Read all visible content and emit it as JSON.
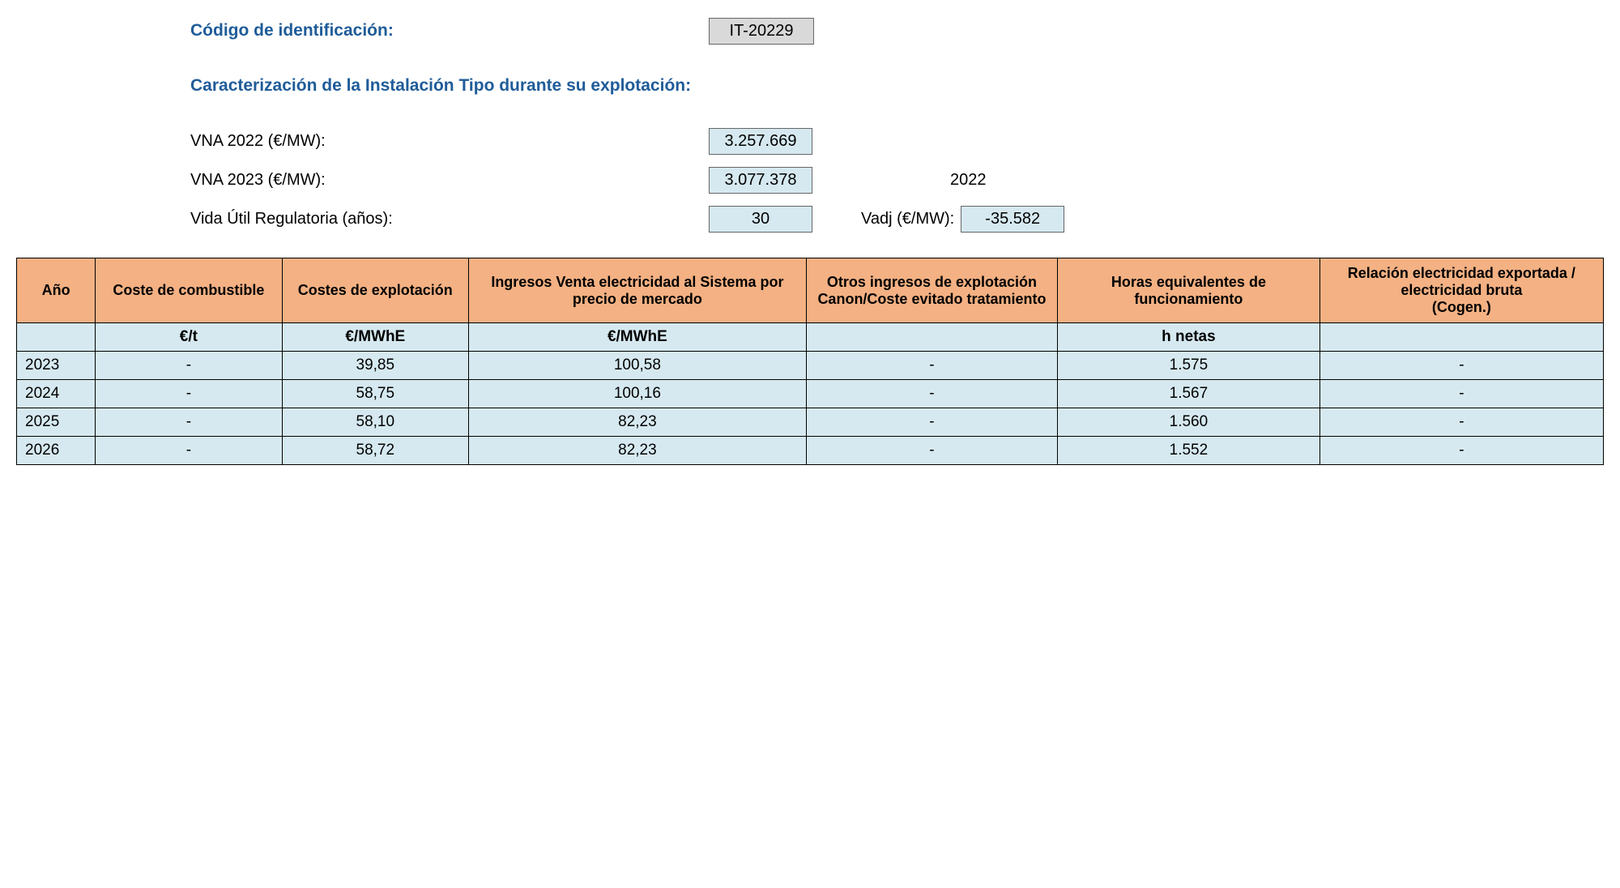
{
  "header": {
    "code_label": "Código de identificación:",
    "code_value": "IT-20229",
    "section_title": "Caracterización de la Instalación Tipo durante su explotación:",
    "vna2022_label": "VNA 2022 (€/MW):",
    "vna2022_value": "3.257.669",
    "vna2023_label": "VNA 2023 (€/MW):",
    "vna2023_value": "3.077.378",
    "year_ref": "2022",
    "vida_label": "Vida Útil Regulatoria (años):",
    "vida_value": "30",
    "vadj_label": "Vadj (€/MW):",
    "vadj_value": "-35.582"
  },
  "table": {
    "columns": [
      "Año",
      "Coste de combustible",
      "Costes de explotación",
      "Ingresos Venta electricidad al Sistema por precio de mercado",
      "Otros ingresos de explotación Canon/Coste evitado tratamiento",
      "Horas equivalentes de funcionamiento",
      "Relación electricidad exportada / electricidad bruta\n(Cogen.)"
    ],
    "units": [
      "",
      "€/t",
      "€/MWhE",
      "€/MWhE",
      "",
      "h netas",
      ""
    ],
    "rows": [
      [
        "2023",
        "-",
        "39,85",
        "100,58",
        "-",
        "1.575",
        "-"
      ],
      [
        "2024",
        "-",
        "58,75",
        "100,16",
        "-",
        "1.567",
        "-"
      ],
      [
        "2025",
        "-",
        "58,10",
        "82,23",
        "-",
        "1.560",
        "-"
      ],
      [
        "2026",
        "-",
        "58,72",
        "82,23",
        "-",
        "1.552",
        "-"
      ]
    ],
    "col_widths": [
      "60px",
      "160px",
      "160px",
      "300px",
      "220px",
      "230px",
      "250px"
    ],
    "header_bg": "#f4b183",
    "cell_bg": "#d6e9f0",
    "border_color": "#000000"
  }
}
